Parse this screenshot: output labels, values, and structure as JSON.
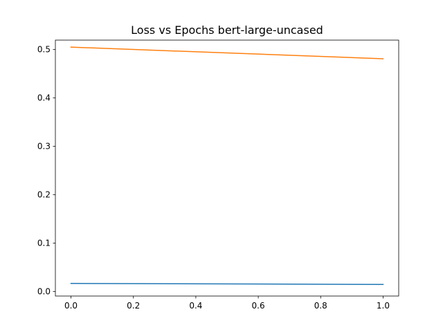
{
  "chart_data": {
    "type": "line",
    "title": "Loss vs Epochs bert-large-uncased",
    "xlabel": "",
    "ylabel": "",
    "xlim": [
      -0.05,
      1.05
    ],
    "ylim": [
      -0.0095,
      0.5195
    ],
    "grid": false,
    "legend": "none",
    "x_ticks": [
      0.0,
      0.2,
      0.4,
      0.6,
      0.8,
      1.0
    ],
    "x_tick_labels": [
      "0.0",
      "0.2",
      "0.4",
      "0.6",
      "0.8",
      "1.0"
    ],
    "y_ticks": [
      0.0,
      0.1,
      0.2,
      0.3,
      0.4,
      0.5
    ],
    "y_tick_labels": [
      "0.0",
      "0.1",
      "0.2",
      "0.3",
      "0.4",
      "0.5"
    ],
    "series": [
      {
        "x": [
          0,
          1
        ],
        "values": [
          0.0165,
          0.0145
        ],
        "color": "#1f77b4"
      },
      {
        "x": [
          0,
          1
        ],
        "values": [
          0.505,
          0.481
        ],
        "color": "#ff7f0e"
      }
    ]
  }
}
